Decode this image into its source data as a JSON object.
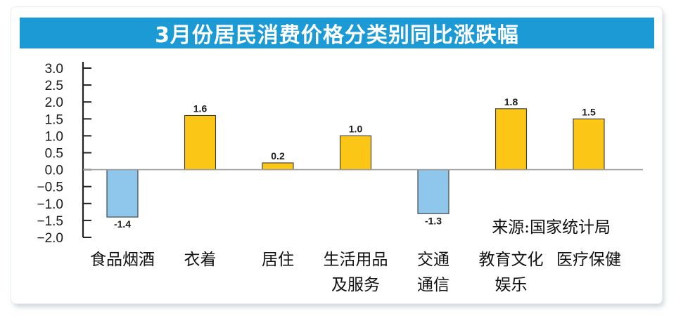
{
  "chart_data": {
    "type": "bar",
    "title": "3月份居民消费价格分类别同比涨跌幅",
    "categories": [
      [
        "食品烟酒"
      ],
      [
        "衣着"
      ],
      [
        "居住"
      ],
      [
        "生活用品",
        "及服务"
      ],
      [
        "交通",
        "通信"
      ],
      [
        "教育文化",
        "娱乐"
      ],
      [
        "医疗保健"
      ]
    ],
    "values": [
      -1.4,
      1.6,
      0.2,
      1.0,
      -1.3,
      1.8,
      1.5
    ],
    "value_labels": [
      "-1.4",
      "1.6",
      "0.2",
      "1.0",
      "-1.3",
      "1.8",
      "1.5"
    ],
    "yticks": [
      "3.0",
      "2.5",
      "2.0",
      "1.5",
      "1.0",
      "0.5",
      "0.0",
      "−0.5",
      "−1.0",
      "−1.5",
      "−2.0"
    ],
    "ylim": [
      -2.0,
      3.0
    ],
    "xlabel": "",
    "ylabel": "",
    "grid": false,
    "source": "来源:国家统计局",
    "colors": {
      "positive": "#fcc616",
      "negative": "#8fc6ec",
      "title_bg": "#1b9ad6"
    }
  }
}
